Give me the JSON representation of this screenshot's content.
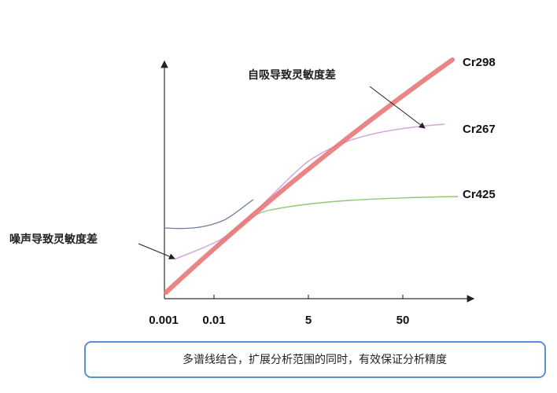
{
  "annotations": {
    "self_absorption": "自吸导致灵敏度差",
    "noise": "噪声导致灵敏度差"
  },
  "curves": [
    {
      "label": "Cr298"
    },
    {
      "label": "Cr267"
    },
    {
      "label": "Cr425"
    }
  ],
  "x_axis": {
    "ticks": [
      "0.001",
      "0.01",
      "5",
      "50"
    ]
  },
  "caption": "多谱线结合，扩展分析范围的同时，有效保证分析精度"
}
